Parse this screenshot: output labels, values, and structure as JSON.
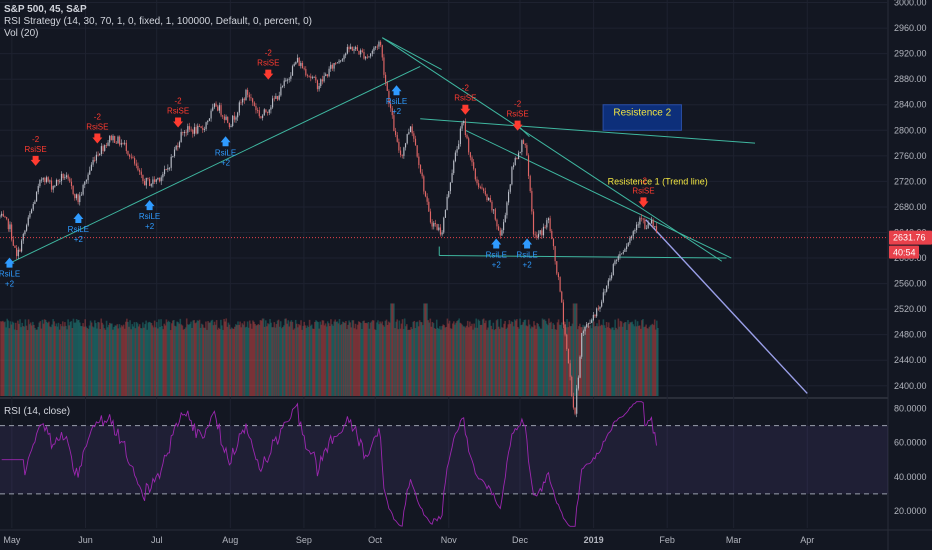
{
  "legend": {
    "symbol": "S&P 500, 45, S&P",
    "strategy": "RSI Strategy (14, 30, 70, 1, 0, fixed, 1, 100000, Default, 0, percent, 0)",
    "volume": "Vol (20)",
    "rsi": "RSI (14, close)"
  },
  "colors": {
    "background": "#131722",
    "up": "#b8bcc6",
    "down": "#e06666",
    "trendline": "#3fb7a0",
    "projection": "#9a9fe8",
    "short_signal": "#ff3b30",
    "long_signal": "#2f9bff",
    "rsi_line": "#9c27b0",
    "price_label": "#e8414b",
    "annotation_text": "#f0e442",
    "box_fill": "#0d2f7a"
  },
  "chart_data": {
    "type": "candlestick",
    "symbol": "S&P 500",
    "timeframe": "45",
    "y_axis": {
      "ticks": [
        2400,
        2440,
        2480,
        2520,
        2560,
        2600,
        2640,
        2680,
        2720,
        2760,
        2800,
        2840,
        2880,
        2920,
        2960,
        3000
      ],
      "ylim": [
        2384,
        3004
      ],
      "tick_labels": [
        "2400.00",
        "2440.00",
        "2480.00",
        "2520.00",
        "2560.00",
        "2600.00",
        "2640.00",
        "2680.00",
        "2720.00",
        "2760.00",
        "2800.00",
        "2840.00",
        "2880.00",
        "2920.00",
        "2960.00",
        "3000.00"
      ]
    },
    "x_axis": {
      "labels": [
        "May",
        "Jun",
        "Jul",
        "Aug",
        "Sep",
        "Oct",
        "Nov",
        "Dec",
        "2019",
        "Feb",
        "Mar",
        "Apr"
      ],
      "range": [
        "2018-04-26",
        "2019-05-05"
      ],
      "dates": [
        "2018-05-01",
        "2018-06-01",
        "2018-07-01",
        "2018-08-01",
        "2018-09-01",
        "2018-10-01",
        "2018-11-01",
        "2018-12-01",
        "2019-01-01",
        "2019-02-01",
        "2019-03-01",
        "2019-04-01"
      ]
    },
    "price_path": [
      {
        "date": "2018-04-26",
        "close": 2665
      },
      {
        "date": "2018-04-30",
        "close": 2650
      },
      {
        "date": "2018-05-03",
        "close": 2600
      },
      {
        "date": "2018-05-08",
        "close": 2660
      },
      {
        "date": "2018-05-14",
        "close": 2730
      },
      {
        "date": "2018-05-18",
        "close": 2712
      },
      {
        "date": "2018-05-23",
        "close": 2730
      },
      {
        "date": "2018-05-29",
        "close": 2690
      },
      {
        "date": "2018-06-05",
        "close": 2760
      },
      {
        "date": "2018-06-12",
        "close": 2790
      },
      {
        "date": "2018-06-18",
        "close": 2775
      },
      {
        "date": "2018-06-25",
        "close": 2720
      },
      {
        "date": "2018-06-29",
        "close": 2718
      },
      {
        "date": "2018-07-05",
        "close": 2735
      },
      {
        "date": "2018-07-12",
        "close": 2800
      },
      {
        "date": "2018-07-20",
        "close": 2800
      },
      {
        "date": "2018-07-26",
        "close": 2840
      },
      {
        "date": "2018-08-01",
        "close": 2810
      },
      {
        "date": "2018-08-08",
        "close": 2860
      },
      {
        "date": "2018-08-14",
        "close": 2820
      },
      {
        "date": "2018-08-22",
        "close": 2860
      },
      {
        "date": "2018-08-29",
        "close": 2910
      },
      {
        "date": "2018-09-07",
        "close": 2870
      },
      {
        "date": "2018-09-14",
        "close": 2905
      },
      {
        "date": "2018-09-21",
        "close": 2930
      },
      {
        "date": "2018-09-28",
        "close": 2915
      },
      {
        "date": "2018-10-03",
        "close": 2940
      },
      {
        "date": "2018-10-05",
        "close": 2885
      },
      {
        "date": "2018-10-10",
        "close": 2780
      },
      {
        "date": "2018-10-12",
        "close": 2760
      },
      {
        "date": "2018-10-16",
        "close": 2810
      },
      {
        "date": "2018-10-19",
        "close": 2760
      },
      {
        "date": "2018-10-24",
        "close": 2660
      },
      {
        "date": "2018-10-29",
        "close": 2640
      },
      {
        "date": "2018-11-02",
        "close": 2730
      },
      {
        "date": "2018-11-07",
        "close": 2815
      },
      {
        "date": "2018-11-12",
        "close": 2725
      },
      {
        "date": "2018-11-19",
        "close": 2680
      },
      {
        "date": "2018-11-23",
        "close": 2632
      },
      {
        "date": "2018-11-28",
        "close": 2745
      },
      {
        "date": "2018-12-03",
        "close": 2790
      },
      {
        "date": "2018-12-07",
        "close": 2630
      },
      {
        "date": "2018-12-10",
        "close": 2640
      },
      {
        "date": "2018-12-13",
        "close": 2660
      },
      {
        "date": "2018-12-18",
        "close": 2545
      },
      {
        "date": "2018-12-24",
        "close": 2350
      },
      {
        "date": "2018-12-27",
        "close": 2480
      },
      {
        "date": "2019-01-04",
        "close": 2530
      },
      {
        "date": "2019-01-10",
        "close": 2595
      },
      {
        "date": "2019-01-17",
        "close": 2635
      },
      {
        "date": "2019-01-21",
        "close": 2670
      },
      {
        "date": "2019-01-23",
        "close": 2640
      },
      {
        "date": "2019-01-25",
        "close": 2660
      },
      {
        "date": "2019-01-28",
        "close": 2632
      }
    ],
    "last_price": "2631.76",
    "countdown": "40:54",
    "signals": [
      {
        "type": "short",
        "label": "RsiSE",
        "qty": "-2",
        "date": "2018-05-11",
        "price": 2735
      },
      {
        "type": "short",
        "label": "RsiSE",
        "qty": "-2",
        "date": "2018-06-06",
        "price": 2770
      },
      {
        "type": "short",
        "label": "RsiSE",
        "qty": "-2",
        "date": "2018-07-10",
        "price": 2795
      },
      {
        "type": "short",
        "label": "RsiSE",
        "qty": "-2",
        "date": "2018-08-17",
        "price": 2870
      },
      {
        "type": "short",
        "label": "RsiSE",
        "qty": "-2",
        "date": "2018-11-08",
        "price": 2815
      },
      {
        "type": "short",
        "label": "RsiSE",
        "qty": "-2",
        "date": "2018-11-30",
        "price": 2790
      },
      {
        "type": "short",
        "label": "RsiSE",
        "qty": "-2",
        "date": "2019-01-22",
        "price": 2670
      },
      {
        "type": "long",
        "label": "RsiLE",
        "qty": "+2",
        "date": "2018-04-30",
        "price": 2610
      },
      {
        "type": "long",
        "label": "RsiLE",
        "qty": "+2",
        "date": "2018-05-29",
        "price": 2680
      },
      {
        "type": "long",
        "label": "RsiLE",
        "qty": "+2",
        "date": "2018-06-28",
        "price": 2700
      },
      {
        "type": "long",
        "label": "RsiLE",
        "qty": "+2",
        "date": "2018-07-30",
        "price": 2800
      },
      {
        "type": "long",
        "label": "RsiLE",
        "qty": "+2",
        "date": "2018-10-10",
        "price": 2880
      },
      {
        "type": "long",
        "label": "RsiLE",
        "qty": "+2",
        "date": "2018-11-21",
        "price": 2640
      },
      {
        "type": "long",
        "label": "RsiLE",
        "qty": "+2",
        "date": "2018-12-04",
        "price": 2640
      }
    ],
    "drawings": {
      "uptrend": {
        "from": {
          "date": "2018-04-29",
          "price": 2590
        },
        "to": {
          "date": "2018-10-20",
          "price": 2900
        }
      },
      "top_fan": [
        {
          "from": {
            "date": "2018-10-04",
            "price": 2945
          },
          "to": {
            "date": "2019-02-24",
            "price": 2595
          }
        },
        {
          "from": {
            "date": "2018-10-04",
            "price": 2945
          },
          "to": {
            "date": "2018-10-29",
            "price": 2895
          }
        }
      ],
      "resistance_2_line": {
        "from": {
          "date": "2018-10-20",
          "price": 2818
        },
        "to": {
          "date": "2019-03-10",
          "price": 2780
        }
      },
      "resistance_1_line": {
        "from": {
          "date": "2018-11-08",
          "price": 2800
        },
        "to": {
          "date": "2019-02-28",
          "price": 2600
        }
      },
      "resistance_1_short": {
        "from": {
          "date": "2018-11-30",
          "price": 2808
        },
        "to": {
          "date": "2018-12-05",
          "price": 2790
        }
      },
      "support_line": {
        "from": {
          "date": "2018-10-28",
          "price": 2604
        },
        "to": {
          "date": "2019-02-26",
          "price": 2600
        }
      },
      "support_tick": {
        "from": {
          "date": "2018-10-28",
          "price": 2604
        },
        "to": {
          "date": "2018-10-28",
          "price": 2618
        }
      },
      "projection": {
        "from": {
          "date": "2019-01-23",
          "price": 2660
        },
        "to": {
          "date": "2019-04-01",
          "price": 2388
        }
      },
      "resistance_2_box": {
        "x1": "2019-01-05",
        "x2": "2019-02-07",
        "y1": 2800,
        "y2": 2840,
        "label": "Resistence 2"
      },
      "resistance_1_label": {
        "date": "2019-01-28",
        "price": 2720,
        "label": "Resistence 1 (Trend line)"
      },
      "last_price_line": 2632
    },
    "volume": {
      "name": "Vol (20)",
      "ylim": [
        0,
        100
      ],
      "start": "2018-04-26",
      "end": "2019-01-28",
      "typical_pct": 88,
      "spike_dates": [
        "2018-10-08",
        "2018-10-22",
        "2018-12-24"
      ]
    },
    "rsi": {
      "name": "RSI (14, close)",
      "ylim": [
        10,
        85
      ],
      "ticks": [
        20,
        40,
        60,
        80
      ],
      "tick_labels": [
        "20.0000",
        "40.0000",
        "60.0000",
        "80.0000"
      ],
      "upper_band": 70,
      "lower_band": 30,
      "start": "2018-04-26",
      "end": "2019-01-28"
    }
  }
}
